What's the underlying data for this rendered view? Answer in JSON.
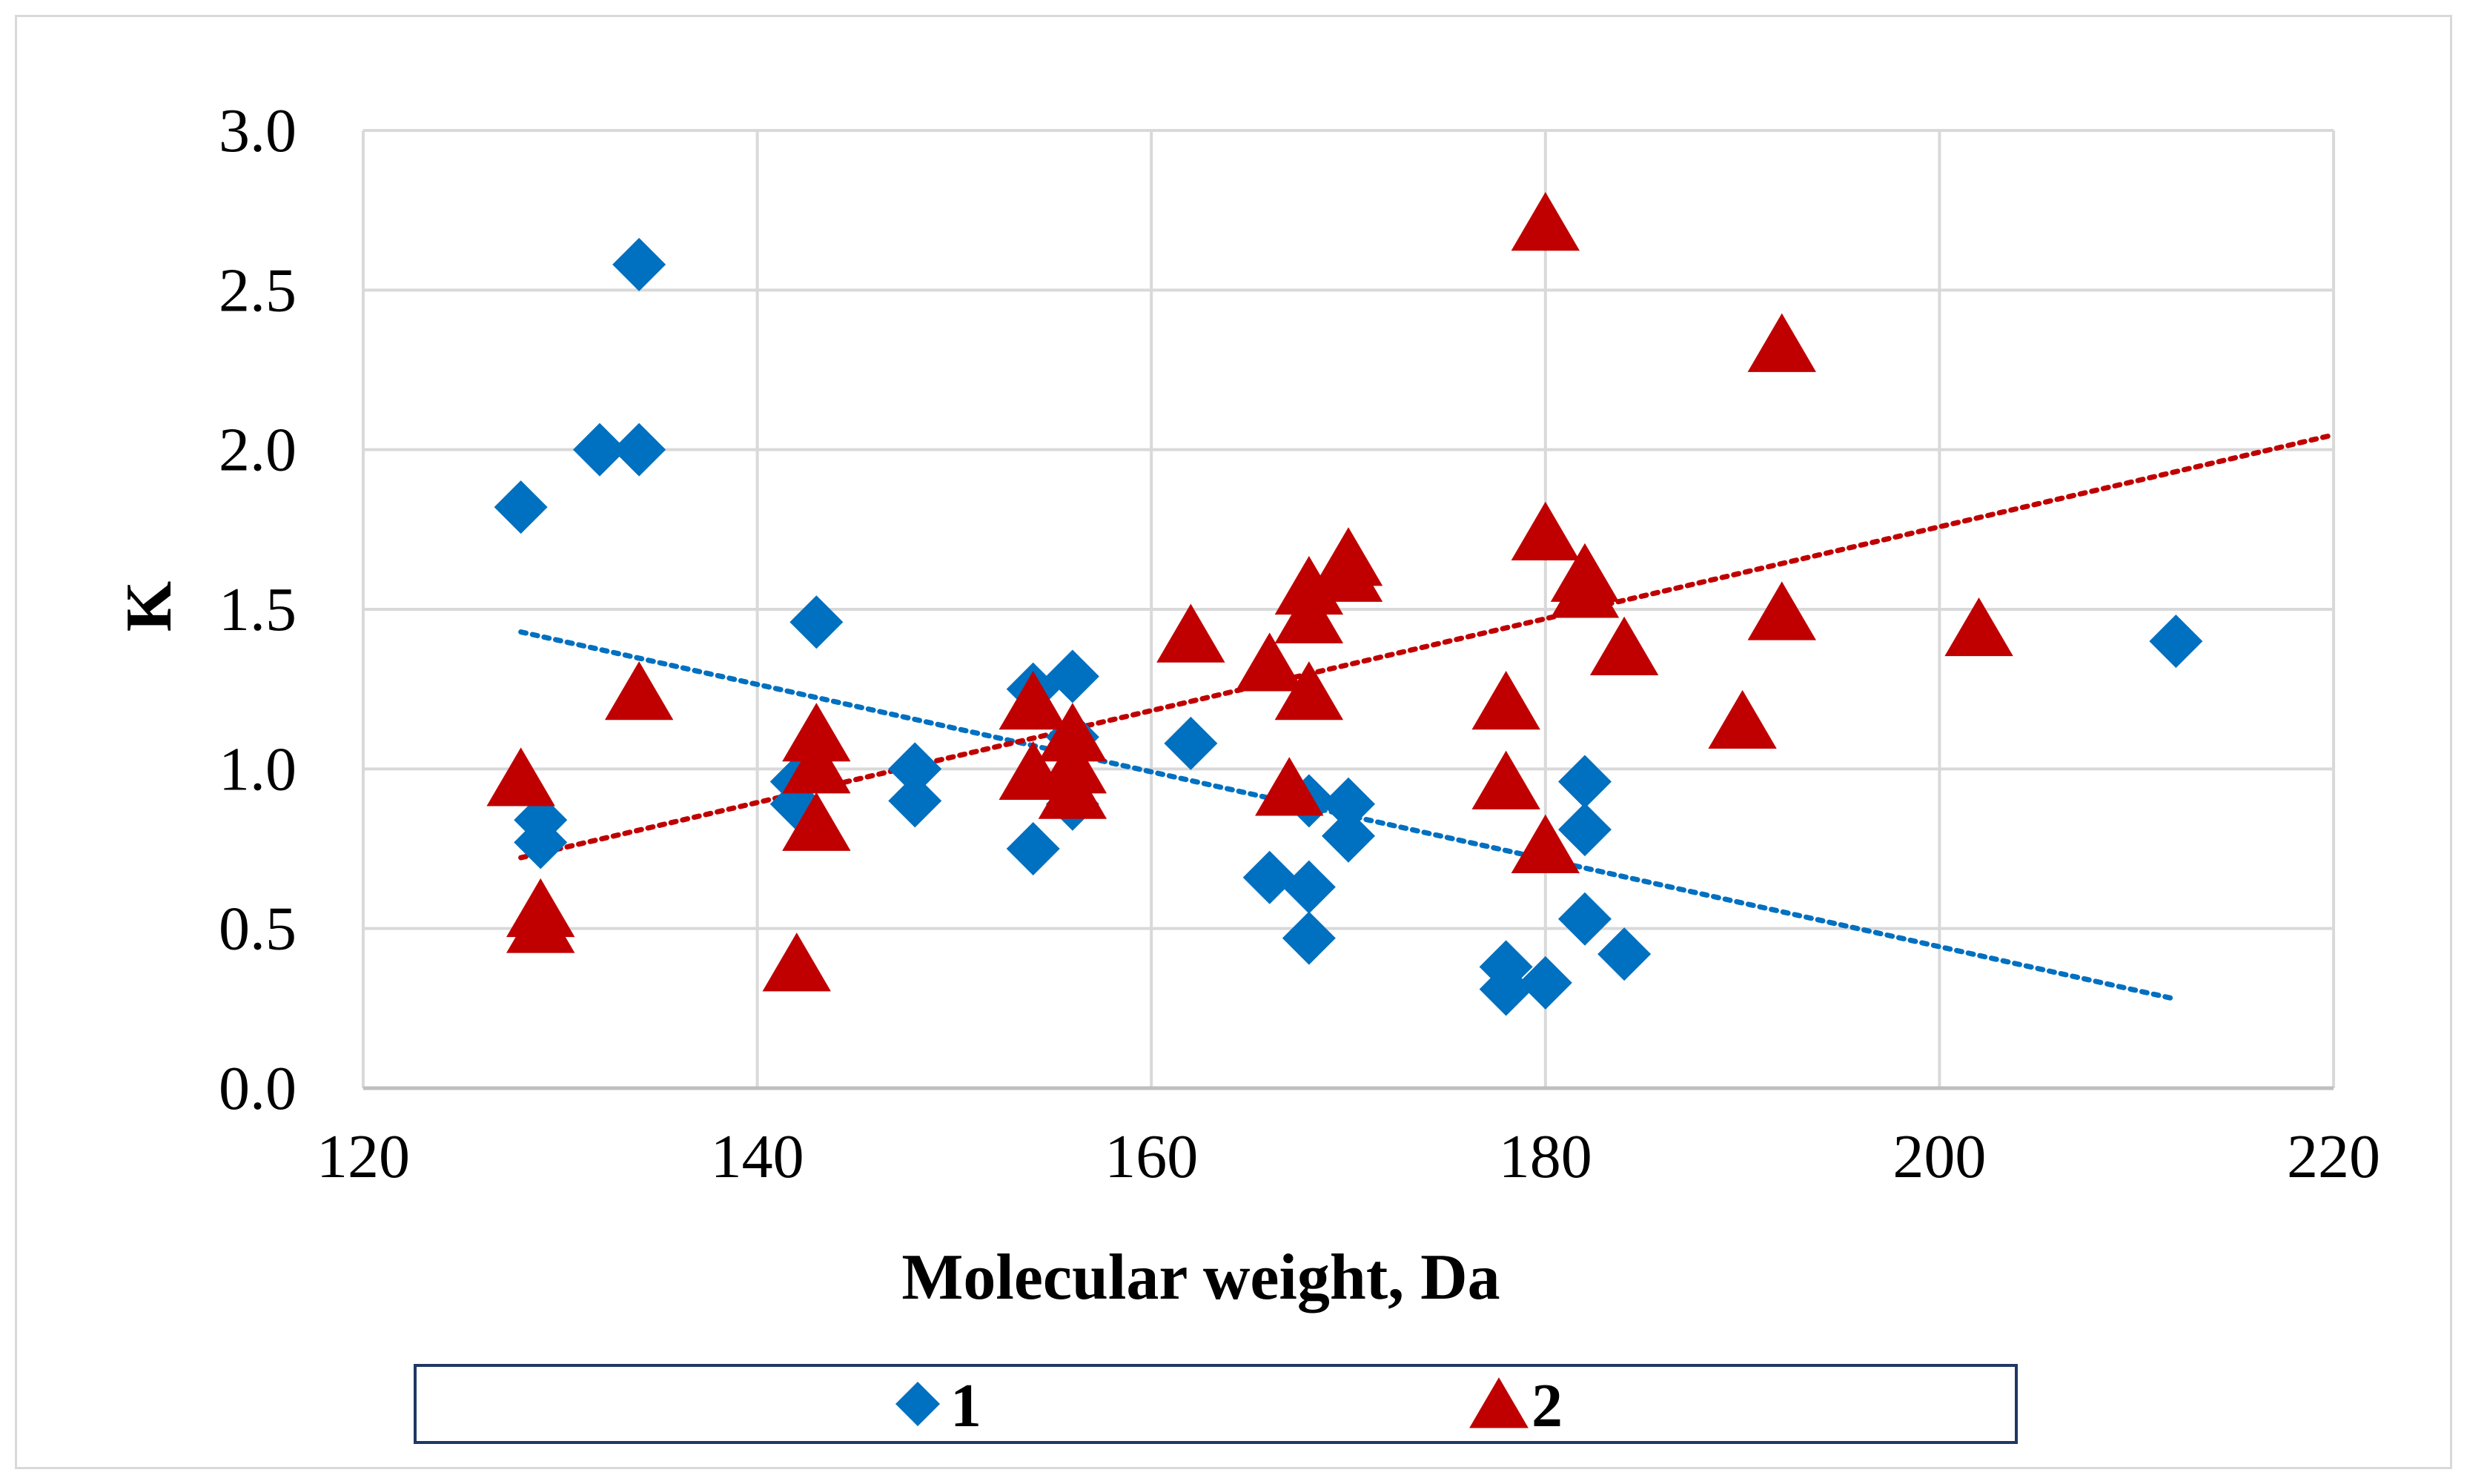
{
  "chart_data": {
    "type": "scatter",
    "xlabel": "Molecular weight, Da",
    "ylabel": "K",
    "xlim": [
      120,
      220
    ],
    "ylim": [
      0,
      3
    ],
    "xticks": [
      120,
      140,
      160,
      180,
      200,
      220
    ],
    "yticks": [
      "0.0",
      "0.5",
      "1.0",
      "1.5",
      "2.0",
      "2.5",
      "3.0"
    ],
    "grid": true,
    "legend_position": "bottom",
    "series": [
      {
        "name": "1",
        "marker": "diamond",
        "color": "#0070C0",
        "trendline": "linear",
        "points": [
          [
            128,
            1.82
          ],
          [
            129,
            0.84
          ],
          [
            129,
            0.77
          ],
          [
            132,
            2.0
          ],
          [
            134,
            2.0
          ],
          [
            134,
            2.58
          ],
          [
            142,
            0.96
          ],
          [
            142,
            0.89
          ],
          [
            143,
            1.46
          ],
          [
            148,
            1.0
          ],
          [
            148,
            0.9
          ],
          [
            154,
            1.25
          ],
          [
            154,
            0.75
          ],
          [
            156,
            1.29
          ],
          [
            156,
            1.1
          ],
          [
            156,
            0.89
          ],
          [
            162,
            1.08
          ],
          [
            166,
            0.66
          ],
          [
            168,
            0.63
          ],
          [
            168,
            0.9
          ],
          [
            168,
            0.47
          ],
          [
            170,
            0.89
          ],
          [
            170,
            0.79
          ],
          [
            178,
            0.38
          ],
          [
            178,
            0.31
          ],
          [
            180,
            0.33
          ],
          [
            182,
            0.96
          ],
          [
            182,
            0.81
          ],
          [
            182,
            0.53
          ],
          [
            184,
            0.42
          ],
          [
            212,
            1.4
          ]
        ]
      },
      {
        "name": "2",
        "marker": "triangle",
        "color": "#C00000",
        "trendline": "linear",
        "points": [
          [
            128,
            0.96
          ],
          [
            129,
            0.55
          ],
          [
            129,
            0.5
          ],
          [
            134,
            1.23
          ],
          [
            142,
            0.38
          ],
          [
            143,
            1.1
          ],
          [
            143,
            1.0
          ],
          [
            143,
            0.82
          ],
          [
            154,
            1.2
          ],
          [
            154,
            0.98
          ],
          [
            156,
            1.1
          ],
          [
            156,
            1.0
          ],
          [
            156,
            0.92
          ],
          [
            162,
            1.41
          ],
          [
            166,
            1.32
          ],
          [
            167,
            0.93
          ],
          [
            168,
            1.56
          ],
          [
            168,
            1.47
          ],
          [
            168,
            1.23
          ],
          [
            170,
            1.65
          ],
          [
            170,
            1.6
          ],
          [
            178,
            1.2
          ],
          [
            178,
            0.95
          ],
          [
            180,
            2.7
          ],
          [
            180,
            1.73
          ],
          [
            180,
            0.75
          ],
          [
            182,
            1.6
          ],
          [
            182,
            1.55
          ],
          [
            184,
            1.37
          ],
          [
            190,
            1.14
          ],
          [
            192,
            2.32
          ],
          [
            192,
            1.48
          ],
          [
            202,
            1.43
          ]
        ]
      }
    ]
  },
  "legend": {
    "items": [
      {
        "label": "1"
      },
      {
        "label": "2"
      }
    ]
  },
  "colors": {
    "series1": "#0070C0",
    "series2": "#C00000",
    "grid": "#d9d9d9",
    "axis": "#bfbfbf"
  }
}
